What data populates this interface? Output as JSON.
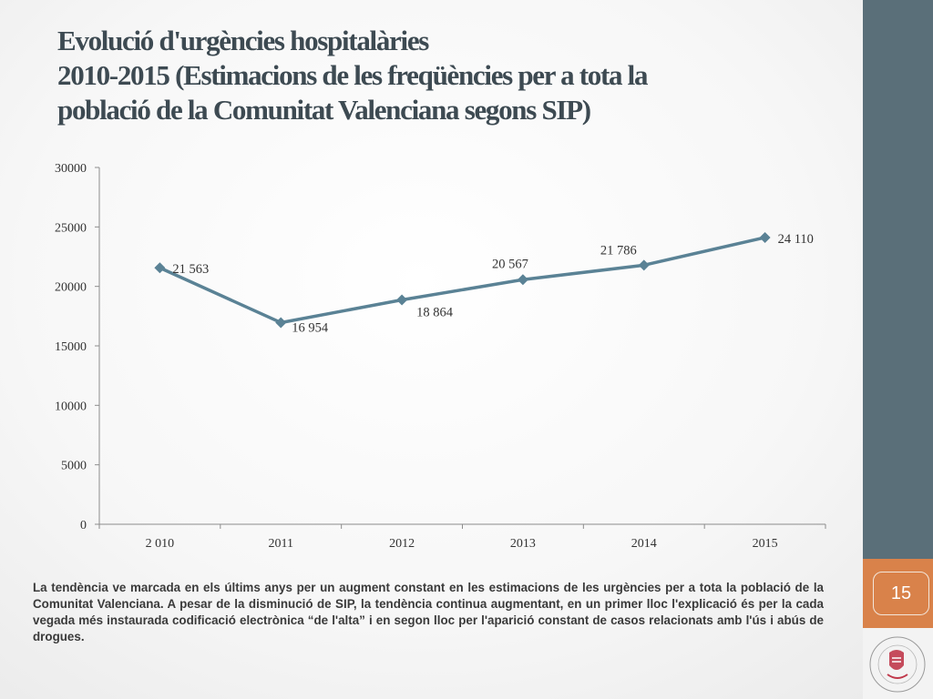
{
  "title": {
    "line1": "Evolució d'urgències hospitalàries",
    "line2": "2010-2015 (Estimacions de les freqüències per a tota la",
    "line3": "població de la Comunitat Valenciana segons SIP)"
  },
  "chart_data": {
    "type": "line",
    "categories": [
      "2 010",
      "2011",
      "2012",
      "2013",
      "2014",
      "2015"
    ],
    "series": [
      {
        "values": [
          21563,
          16954,
          18864,
          20567,
          21786,
          24110
        ]
      }
    ],
    "data_labels": [
      "21 563",
      "16 954",
      "18 864",
      "20 567",
      "21 786",
      "24 110"
    ],
    "y_ticks": [
      "0",
      "5000",
      "10000",
      "15000",
      "20000",
      "25000",
      "30000"
    ],
    "ylim": [
      0,
      30000
    ],
    "grid": false,
    "legend": "none",
    "line_color": "#5a8295"
  },
  "description": "La tendència ve marcada en els últims anys per un augment constant en les estimacions de les urgències per a tota la població de la Comunitat Valenciana. A pesar de la disminució de SIP, la tendència continua augmentant, en un primer lloc l'explicació és per la cada vegada més instaurada codificació electrònica “de l'alta” i en segon lloc per l'aparició constant de casos relacionats amb l'ús i abús de drogues.",
  "page_number": "15",
  "colors": {
    "sidebar": "#5a6f79",
    "accent": "#d9824a",
    "title": "#3d4a52"
  }
}
